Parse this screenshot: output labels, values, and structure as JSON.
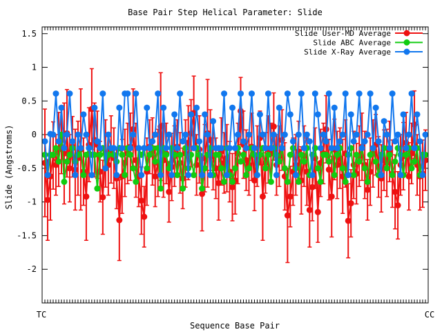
{
  "chart_data": {
    "type": "line",
    "title": "Base Pair Step Helical Parameter: Slide",
    "xlabel": "Sequence Base Pair",
    "ylabel": "Slide (Angstroms)",
    "x_tick_first": "TC",
    "x_tick_last": "CC",
    "xlim": [
      0,
      140
    ],
    "ylim": [
      -2.5,
      1.6
    ],
    "y_ticks": [
      {
        "v": 1.5,
        "label": "1.5"
      },
      {
        "v": 1,
        "label": "1"
      },
      {
        "v": 0.5,
        "label": "0.5"
      },
      {
        "v": 0,
        "label": "0"
      },
      {
        "v": -0.5,
        "label": "-0.5"
      },
      {
        "v": -1,
        "label": "-1"
      },
      {
        "v": -1.5,
        "label": "-1.5"
      },
      {
        "v": -2,
        "label": "-2"
      }
    ],
    "grid": false,
    "legend_position": "top-right",
    "series": [
      {
        "name": "Slide User-MD Average",
        "color": "#ee1111",
        "error_bars": true,
        "x": [
          1,
          2,
          3,
          4,
          5,
          6,
          7,
          8,
          9,
          10,
          11,
          12,
          13,
          14,
          15,
          16,
          17,
          18,
          19,
          20,
          21,
          22,
          23,
          24,
          25,
          26,
          27,
          28,
          29,
          30,
          31,
          32,
          33,
          34,
          35,
          36,
          37,
          38,
          39,
          40,
          41,
          42,
          43,
          44,
          45,
          46,
          47,
          48,
          49,
          50,
          51,
          52,
          53,
          54,
          55,
          56,
          57,
          58,
          59,
          60,
          61,
          62,
          63,
          64,
          65,
          66,
          67,
          68,
          69,
          70,
          71,
          72,
          73,
          74,
          75,
          76,
          77,
          78,
          79,
          80,
          81,
          82,
          83,
          84,
          85,
          86,
          87,
          88,
          89,
          90,
          91,
          92,
          93,
          94,
          95,
          96,
          97,
          98,
          99,
          100,
          101,
          102,
          103,
          104,
          105,
          106,
          107,
          108,
          109,
          110,
          111,
          112,
          113,
          114,
          115,
          116,
          117,
          118,
          119,
          120,
          121,
          122,
          123,
          124,
          125,
          126,
          127,
          128,
          129,
          130,
          131,
          132,
          133,
          134,
          135,
          136,
          137,
          138,
          139
        ],
        "y": [
          -0.42,
          -0.97,
          -0.62,
          -0.31,
          -0.45,
          -0.22,
          -0.08,
          -0.28,
          0.02,
          -0.5,
          -0.18,
          -0.52,
          -0.35,
          -0.22,
          -0.55,
          -0.92,
          -0.15,
          0.38,
          -0.08,
          -0.15,
          -0.55,
          -0.93,
          -0.28,
          -0.45,
          -0.22,
          -0.35,
          -0.65,
          -1.27,
          -0.62,
          -0.42,
          -0.28,
          -0.18,
          0.08,
          -0.38,
          -0.62,
          -0.98,
          -1.22,
          -0.55,
          -0.18,
          -0.25,
          -0.62,
          -0.42,
          0.12,
          -0.38,
          -0.28,
          -0.85,
          -0.48,
          -0.32,
          -0.18,
          -0.42,
          -0.65,
          -0.28,
          -0.12,
          0.02,
          0.32,
          -0.45,
          -0.22,
          -0.88,
          -0.35,
          0.02,
          -0.08,
          -0.32,
          -0.5,
          -0.72,
          -0.25,
          -0.42,
          -0.35,
          -0.55,
          -0.78,
          -0.68,
          -0.28,
          0.35,
          -0.15,
          -0.38,
          -0.45,
          -0.18,
          -0.68,
          -0.32,
          -0.05,
          -0.92,
          -0.42,
          -0.22,
          -0.28,
          0.12,
          -0.45,
          -0.32,
          -0.08,
          -0.62,
          -1.2,
          -0.92,
          -0.55,
          -0.45,
          -0.25,
          -0.68,
          -0.32,
          -0.55,
          -1.12,
          -0.78,
          -0.35,
          -1.15,
          -0.42,
          -0.28,
          0.08,
          -0.52,
          -0.92,
          -0.22,
          -0.45,
          -0.35,
          -0.62,
          -0.28,
          -1.28,
          -1.02,
          -0.45,
          -0.58,
          -0.32,
          -0.18,
          -0.45,
          -0.82,
          -0.55,
          -0.28,
          -0.15,
          -0.48,
          -0.65,
          -0.38,
          -0.42,
          -0.25,
          -0.58,
          -0.85,
          -1.05,
          -0.45,
          -0.32,
          -0.12,
          -0.62,
          -0.28,
          0.15,
          -0.45,
          -0.62,
          -0.58,
          -0.38
        ],
        "err": [
          0.8,
          0.6,
          0.65,
          0.5,
          0.45,
          0.55,
          0.5,
          0.75,
          0.65,
          0.5,
          0.45,
          0.6,
          0.55,
          0.9,
          0.5,
          0.65,
          0.55,
          0.6,
          0.55,
          0.5,
          0.45,
          0.55,
          0.5,
          0.45,
          0.5,
          0.45,
          0.45,
          0.6,
          0.55,
          0.5,
          0.45,
          0.5,
          0.6,
          0.55,
          0.45,
          0.5,
          0.45,
          0.5,
          0.4,
          0.5,
          0.45,
          0.5,
          0.8,
          0.55,
          0.45,
          0.45,
          0.5,
          0.45,
          0.4,
          0.45,
          0.45,
          0.5,
          0.55,
          0.5,
          0.55,
          0.45,
          0.5,
          0.55,
          0.5,
          0.8,
          0.45,
          0.5,
          0.45,
          0.55,
          0.5,
          0.45,
          0.5,
          0.45,
          0.5,
          0.5,
          0.45,
          0.5,
          0.5,
          0.45,
          0.45,
          0.5,
          0.45,
          0.45,
          0.4,
          0.65,
          0.45,
          0.5,
          0.45,
          0.5,
          0.45,
          0.45,
          0.45,
          0.5,
          0.7,
          0.45,
          0.5,
          0.45,
          0.45,
          0.5,
          0.45,
          0.5,
          0.55,
          0.5,
          0.45,
          0.45,
          0.5,
          0.45,
          0.5,
          0.45,
          0.6,
          0.45,
          0.5,
          0.45,
          0.55,
          0.5,
          0.55,
          0.5,
          0.5,
          0.45,
          0.45,
          0.5,
          0.5,
          0.45,
          0.5,
          0.5,
          0.45,
          0.45,
          0.5,
          0.45,
          0.5,
          0.45,
          0.5,
          0.55,
          0.5,
          0.45,
          0.5,
          0.45,
          0.5,
          0.45,
          0.5,
          0.45,
          0.5,
          0.5,
          0.45
        ]
      },
      {
        "name": "Slide ABC Average",
        "color": "#11cc11",
        "error_bars": false,
        "x": [
          1,
          2,
          3,
          4,
          5,
          6,
          7,
          8,
          9,
          10,
          11,
          12,
          13,
          14,
          15,
          16,
          17,
          18,
          19,
          20,
          21,
          22,
          23,
          24,
          25,
          26,
          27,
          28,
          29,
          30,
          31,
          32,
          33,
          34,
          35,
          36,
          37,
          38,
          39,
          40,
          41,
          42,
          43,
          44,
          45,
          46,
          47,
          48,
          49,
          50,
          51,
          52,
          53,
          54,
          55,
          56,
          57,
          58,
          59,
          60,
          61,
          62,
          63,
          64,
          65,
          66,
          67,
          68,
          69,
          70,
          71,
          72,
          73,
          74,
          75,
          76,
          77,
          78,
          79,
          80,
          81,
          82,
          83,
          84,
          85,
          86,
          87,
          88,
          89,
          90,
          91,
          92,
          93,
          94,
          95,
          96,
          97,
          98,
          99,
          100,
          101,
          102,
          103,
          104,
          105,
          106,
          107,
          108,
          109,
          110,
          111,
          112,
          113,
          114,
          115,
          116,
          117,
          118,
          119,
          120,
          121,
          122,
          123,
          124,
          125,
          126,
          127,
          128,
          129,
          130,
          131,
          132,
          133,
          134,
          135,
          136,
          137,
          138,
          139
        ],
        "y": [
          -0.3,
          -0.6,
          -0.3,
          -0.3,
          -0.2,
          -0.4,
          0.0,
          -0.7,
          -0.4,
          -0.3,
          -0.2,
          -0.4,
          -0.3,
          -0.2,
          -0.6,
          -0.3,
          -0.2,
          -0.3,
          -0.3,
          -0.8,
          -0.3,
          -0.2,
          -0.5,
          -0.3,
          -0.2,
          -0.3,
          -0.4,
          -0.2,
          -0.3,
          -0.6,
          -0.2,
          -0.3,
          -0.5,
          -0.7,
          -0.2,
          -0.3,
          -0.2,
          -0.5,
          -0.3,
          -0.2,
          -0.4,
          -0.2,
          -0.8,
          -0.2,
          -0.3,
          -0.5,
          -0.2,
          -0.3,
          -0.6,
          -0.3,
          -0.8,
          -0.2,
          -0.5,
          -0.3,
          -0.6,
          -0.2,
          -0.3,
          -0.8,
          -0.5,
          -0.3,
          -0.2,
          -0.6,
          -0.3,
          -0.3,
          -0.5,
          -0.7,
          -0.2,
          -0.6,
          -0.7,
          -0.5,
          -0.2,
          -0.4,
          -0.3,
          -0.6,
          -0.5,
          -0.2,
          -0.3,
          -0.6,
          -0.3,
          -0.2,
          -0.5,
          -0.3,
          -0.7,
          -0.2,
          -0.3,
          -0.4,
          -0.2,
          -0.5,
          -0.7,
          -0.3,
          -0.2,
          -0.5,
          -0.7,
          -0.3,
          -0.4,
          -0.2,
          -0.6,
          -0.3,
          -0.2,
          -0.5,
          -0.7,
          -0.3,
          -0.3,
          -0.4,
          -0.2,
          -0.6,
          -0.3,
          -0.2,
          -0.5,
          -0.7,
          -0.3,
          -0.2,
          -0.6,
          -0.3,
          -0.4,
          -0.2,
          -0.5,
          -0.7,
          -0.3,
          -0.2,
          -0.4,
          -0.6,
          -0.3,
          -0.2,
          -0.5,
          -0.3,
          -0.6,
          -0.4,
          -0.2,
          -0.3,
          -0.6,
          -0.3,
          -0.2,
          -0.5,
          -0.4,
          -0.2,
          -0.6,
          -0.3,
          -0.3
        ]
      },
      {
        "name": "Slide X-Ray Average",
        "color": "#1177ee",
        "error_bars": false,
        "x": [
          1,
          2,
          3,
          4,
          5,
          6,
          7,
          8,
          9,
          10,
          11,
          12,
          13,
          14,
          15,
          16,
          17,
          18,
          19,
          20,
          21,
          22,
          23,
          24,
          25,
          26,
          27,
          28,
          29,
          30,
          31,
          32,
          33,
          34,
          35,
          36,
          37,
          38,
          39,
          40,
          41,
          42,
          43,
          44,
          45,
          46,
          47,
          48,
          49,
          50,
          51,
          52,
          53,
          54,
          55,
          56,
          57,
          58,
          59,
          60,
          61,
          62,
          63,
          64,
          65,
          66,
          67,
          68,
          69,
          70,
          71,
          72,
          73,
          74,
          75,
          76,
          77,
          78,
          79,
          80,
          81,
          82,
          83,
          84,
          85,
          86,
          87,
          88,
          89,
          90,
          91,
          92,
          93,
          94,
          95,
          96,
          97,
          98,
          99,
          100,
          101,
          102,
          103,
          104,
          105,
          106,
          107,
          108,
          109,
          110,
          111,
          112,
          113,
          114,
          115,
          116,
          117,
          118,
          119,
          120,
          121,
          122,
          123,
          124,
          125,
          126,
          127,
          128,
          129,
          130,
          131,
          132,
          133,
          134,
          135,
          136,
          137,
          138,
          139
        ],
        "y": [
          -0.1,
          -0.6,
          0.01,
          0.0,
          0.61,
          -0.1,
          0.4,
          -0.2,
          0.0,
          0.61,
          -0.1,
          -0.6,
          0.0,
          -0.2,
          0.3,
          0.0,
          -0.2,
          -0.6,
          0.4,
          -0.1,
          -0.2,
          0.61,
          -0.5,
          0.0,
          -0.2,
          -0.2,
          -0.6,
          0.4,
          -0.2,
          0.61,
          0.61,
          -0.2,
          0.0,
          0.61,
          -0.2,
          -0.6,
          -0.2,
          0.4,
          -0.2,
          -0.1,
          0.0,
          0.61,
          -0.6,
          0.4,
          -0.2,
          0.0,
          -0.6,
          0.3,
          -0.2,
          0.61,
          -0.1,
          0.0,
          -0.6,
          0.3,
          -0.2,
          0.4,
          -0.1,
          -0.6,
          0.3,
          0.0,
          -0.6,
          0.2,
          -0.2,
          -0.2,
          -0.2,
          0.61,
          -0.6,
          -0.2,
          0.4,
          -0.2,
          0.0,
          0.61,
          -0.1,
          -0.2,
          0.0,
          0.61,
          -0.2,
          -0.6,
          0.3,
          0.0,
          -0.2,
          0.61,
          -0.2,
          0.0,
          -0.6,
          0.4,
          -0.2,
          0.0,
          0.61,
          0.3,
          -0.1,
          -0.6,
          0.0,
          0.61,
          -0.2,
          0.0,
          -0.1,
          -0.6,
          0.61,
          0.3,
          -0.2,
          0.0,
          -0.1,
          0.61,
          -0.2,
          0.4,
          -0.2,
          -0.1,
          0.0,
          0.61,
          -0.6,
          0.3,
          -0.1,
          0.0,
          0.61,
          -0.2,
          -0.1,
          0.0,
          0.61,
          -0.2,
          0.4,
          -0.1,
          -0.6,
          0.2,
          0.0,
          -0.2,
          0.61,
          -0.1,
          0.0,
          -0.6,
          0.3,
          -0.2,
          0.0,
          0.61,
          -0.2,
          0.3,
          -0.1,
          -0.6,
          0.0
        ]
      }
    ]
  }
}
